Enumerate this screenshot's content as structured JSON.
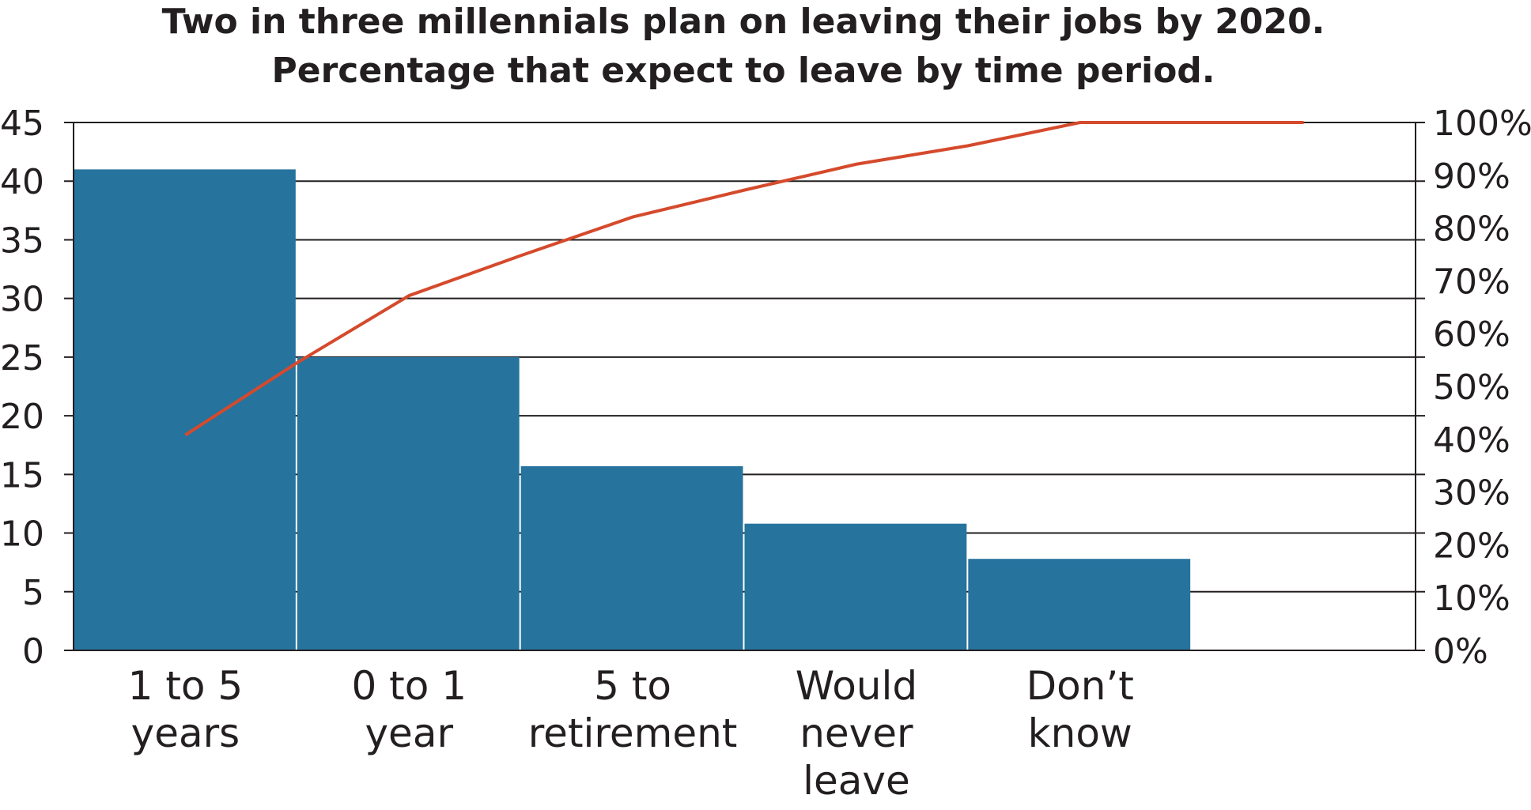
{
  "chart_data": {
    "type": "bar",
    "title_lines": [
      "Two in three millennials plan on leaving their jobs by 2020.",
      "Percentage that expect to leave by time period."
    ],
    "categories": [
      [
        "1 to 5",
        "years"
      ],
      [
        "0 to 1",
        "year"
      ],
      [
        "5 to",
        "retirement"
      ],
      [
        "Would",
        "never",
        "leave"
      ],
      [
        "Don’t",
        "know"
      ]
    ],
    "values": [
      41,
      25,
      15.7,
      10.8,
      7.8
    ],
    "cumulative_percent": [
      40.8,
      54.5,
      67.2,
      74.8,
      82.1,
      87.2,
      92.1,
      95.6,
      100,
      100,
      100
    ],
    "cumulative_x": [
      0.5,
      1.0,
      1.5,
      2.0,
      2.5,
      3.0,
      3.5,
      4.0,
      4.5,
      5.0,
      5.5
    ],
    "ylim": [
      0,
      45
    ],
    "yticks": [
      "0",
      "5",
      "10",
      "15",
      "20",
      "25",
      "30",
      "35",
      "40",
      "45"
    ],
    "y2lim": [
      0,
      100
    ],
    "y2ticks": [
      "0%",
      "10%",
      "20%",
      "30%",
      "40%",
      "50%",
      "60%",
      "70%",
      "80%",
      "90%",
      "100%"
    ],
    "slots": 6,
    "grid": true,
    "colors": {
      "bar": "#26739e",
      "line": "#d54a2c",
      "text": "#231f20"
    }
  }
}
